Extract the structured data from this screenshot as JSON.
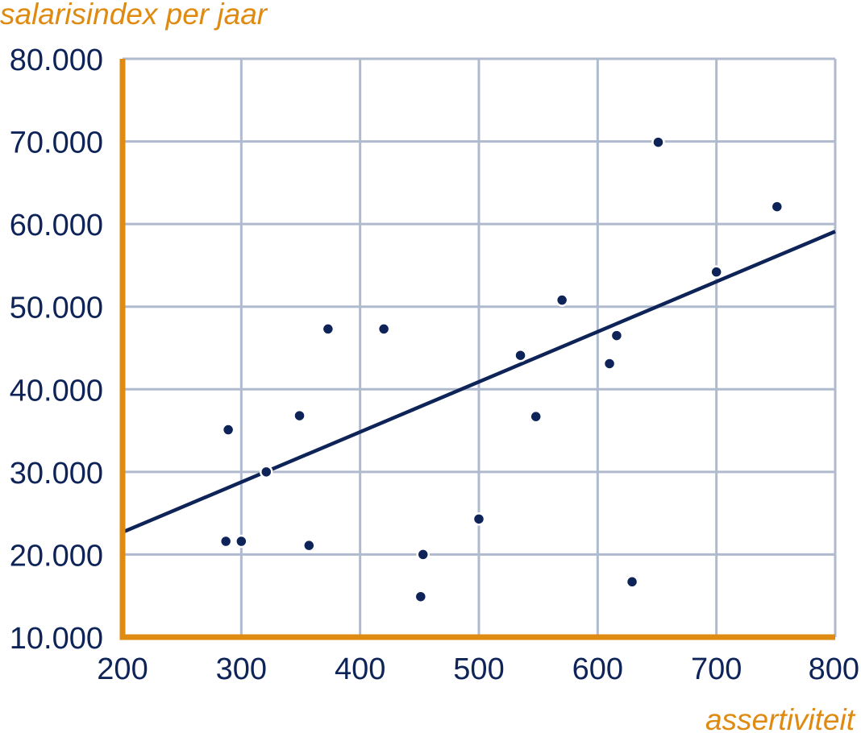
{
  "chart_data": {
    "type": "scatter",
    "title": "",
    "xlabel": "assertiviteit",
    "ylabel": "salarisindex per jaar",
    "xlim": [
      200,
      800
    ],
    "ylim": [
      10000,
      80000
    ],
    "x_ticks": [
      "200",
      "300",
      "400",
      "500",
      "600",
      "700",
      "800"
    ],
    "y_ticks": [
      "10.000",
      "20.000",
      "30.000",
      "40.000",
      "50.000",
      "60.000",
      "70.000",
      "80.000"
    ],
    "grid": true,
    "points": [
      {
        "x": 287,
        "y": 21600
      },
      {
        "x": 289,
        "y": 35100
      },
      {
        "x": 300,
        "y": 21600
      },
      {
        "x": 321,
        "y": 30000
      },
      {
        "x": 349,
        "y": 36800
      },
      {
        "x": 357,
        "y": 21100
      },
      {
        "x": 373,
        "y": 47300
      },
      {
        "x": 420,
        "y": 47300
      },
      {
        "x": 451,
        "y": 14900
      },
      {
        "x": 453,
        "y": 20000
      },
      {
        "x": 500,
        "y": 24300
      },
      {
        "x": 535,
        "y": 44100
      },
      {
        "x": 548,
        "y": 36700
      },
      {
        "x": 570,
        "y": 50800
      },
      {
        "x": 610,
        "y": 43100
      },
      {
        "x": 616,
        "y": 46500
      },
      {
        "x": 629,
        "y": 16700
      },
      {
        "x": 651,
        "y": 69900
      },
      {
        "x": 700,
        "y": 54200
      },
      {
        "x": 751,
        "y": 62100
      }
    ],
    "trendline": {
      "x": [
        200,
        800
      ],
      "y": [
        22700,
        59100
      ]
    },
    "colors": {
      "axis": "#DF8A10",
      "label": "#DF8A10",
      "grid": "#B0BACE",
      "text": "#0E2458",
      "points": "#0E2458",
      "trendline": "#0E2458"
    }
  }
}
